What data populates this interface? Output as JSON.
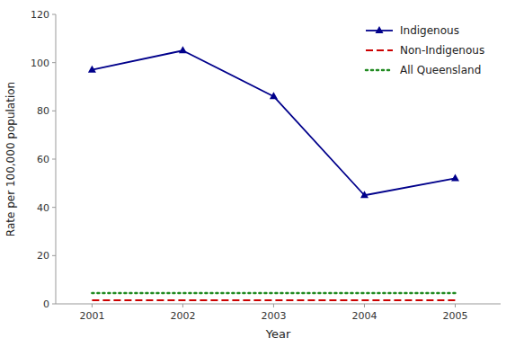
{
  "chart_data": {
    "type": "line",
    "x": [
      2001,
      2002,
      2003,
      2004,
      2005
    ],
    "xlim": [
      2000.6,
      2005.5
    ],
    "xticks": [
      2001,
      2002,
      2003,
      2004,
      2005
    ],
    "ylim": [
      0,
      120
    ],
    "yticks": [
      0,
      20,
      40,
      60,
      80,
      100,
      120
    ],
    "x_label": "Year",
    "y_label": "Rate per 100,000 population",
    "legend": "upper right",
    "grid": false,
    "series": [
      {
        "name": "Indigenous",
        "color": "#00008B",
        "values": [
          97,
          105,
          86,
          45,
          52
        ],
        "line_style": "solid",
        "marker": "triangle"
      },
      {
        "name": "Non-Indigenous",
        "color": "#CC0000",
        "values": [
          1.5,
          1.5,
          1.5,
          1.5,
          1.5
        ],
        "line_style": "dashed"
      },
      {
        "name": "All Queensland",
        "color": "#228B22",
        "values": [
          4.5,
          4.5,
          4.5,
          4.5,
          4.5
        ],
        "line_style": "dotted"
      }
    ]
  }
}
